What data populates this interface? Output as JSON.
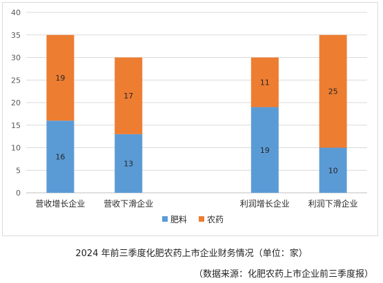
{
  "chart_data": {
    "type": "bar",
    "stacked": true,
    "categories": [
      "营收增长企业",
      "营收下滑企业",
      "",
      "利润增长企业",
      "利润下滑企业"
    ],
    "series": [
      {
        "name": "肥料",
        "values": [
          16,
          13,
          null,
          19,
          10
        ],
        "color": "#5b9bd5"
      },
      {
        "name": "农药",
        "values": [
          19,
          17,
          null,
          11,
          25
        ],
        "color": "#ed7d31"
      }
    ],
    "ylim": [
      0,
      40
    ],
    "yticks": [
      0,
      5,
      10,
      15,
      20,
      25,
      30,
      35,
      40
    ],
    "grid": true,
    "legend_position": "bottom",
    "data_labels": true
  },
  "caption": {
    "title": "2024 年前三季度化肥农药上市企业财务情况（单位：家）",
    "source": "（数据来源：化肥农药上市企业前三季度报）"
  }
}
